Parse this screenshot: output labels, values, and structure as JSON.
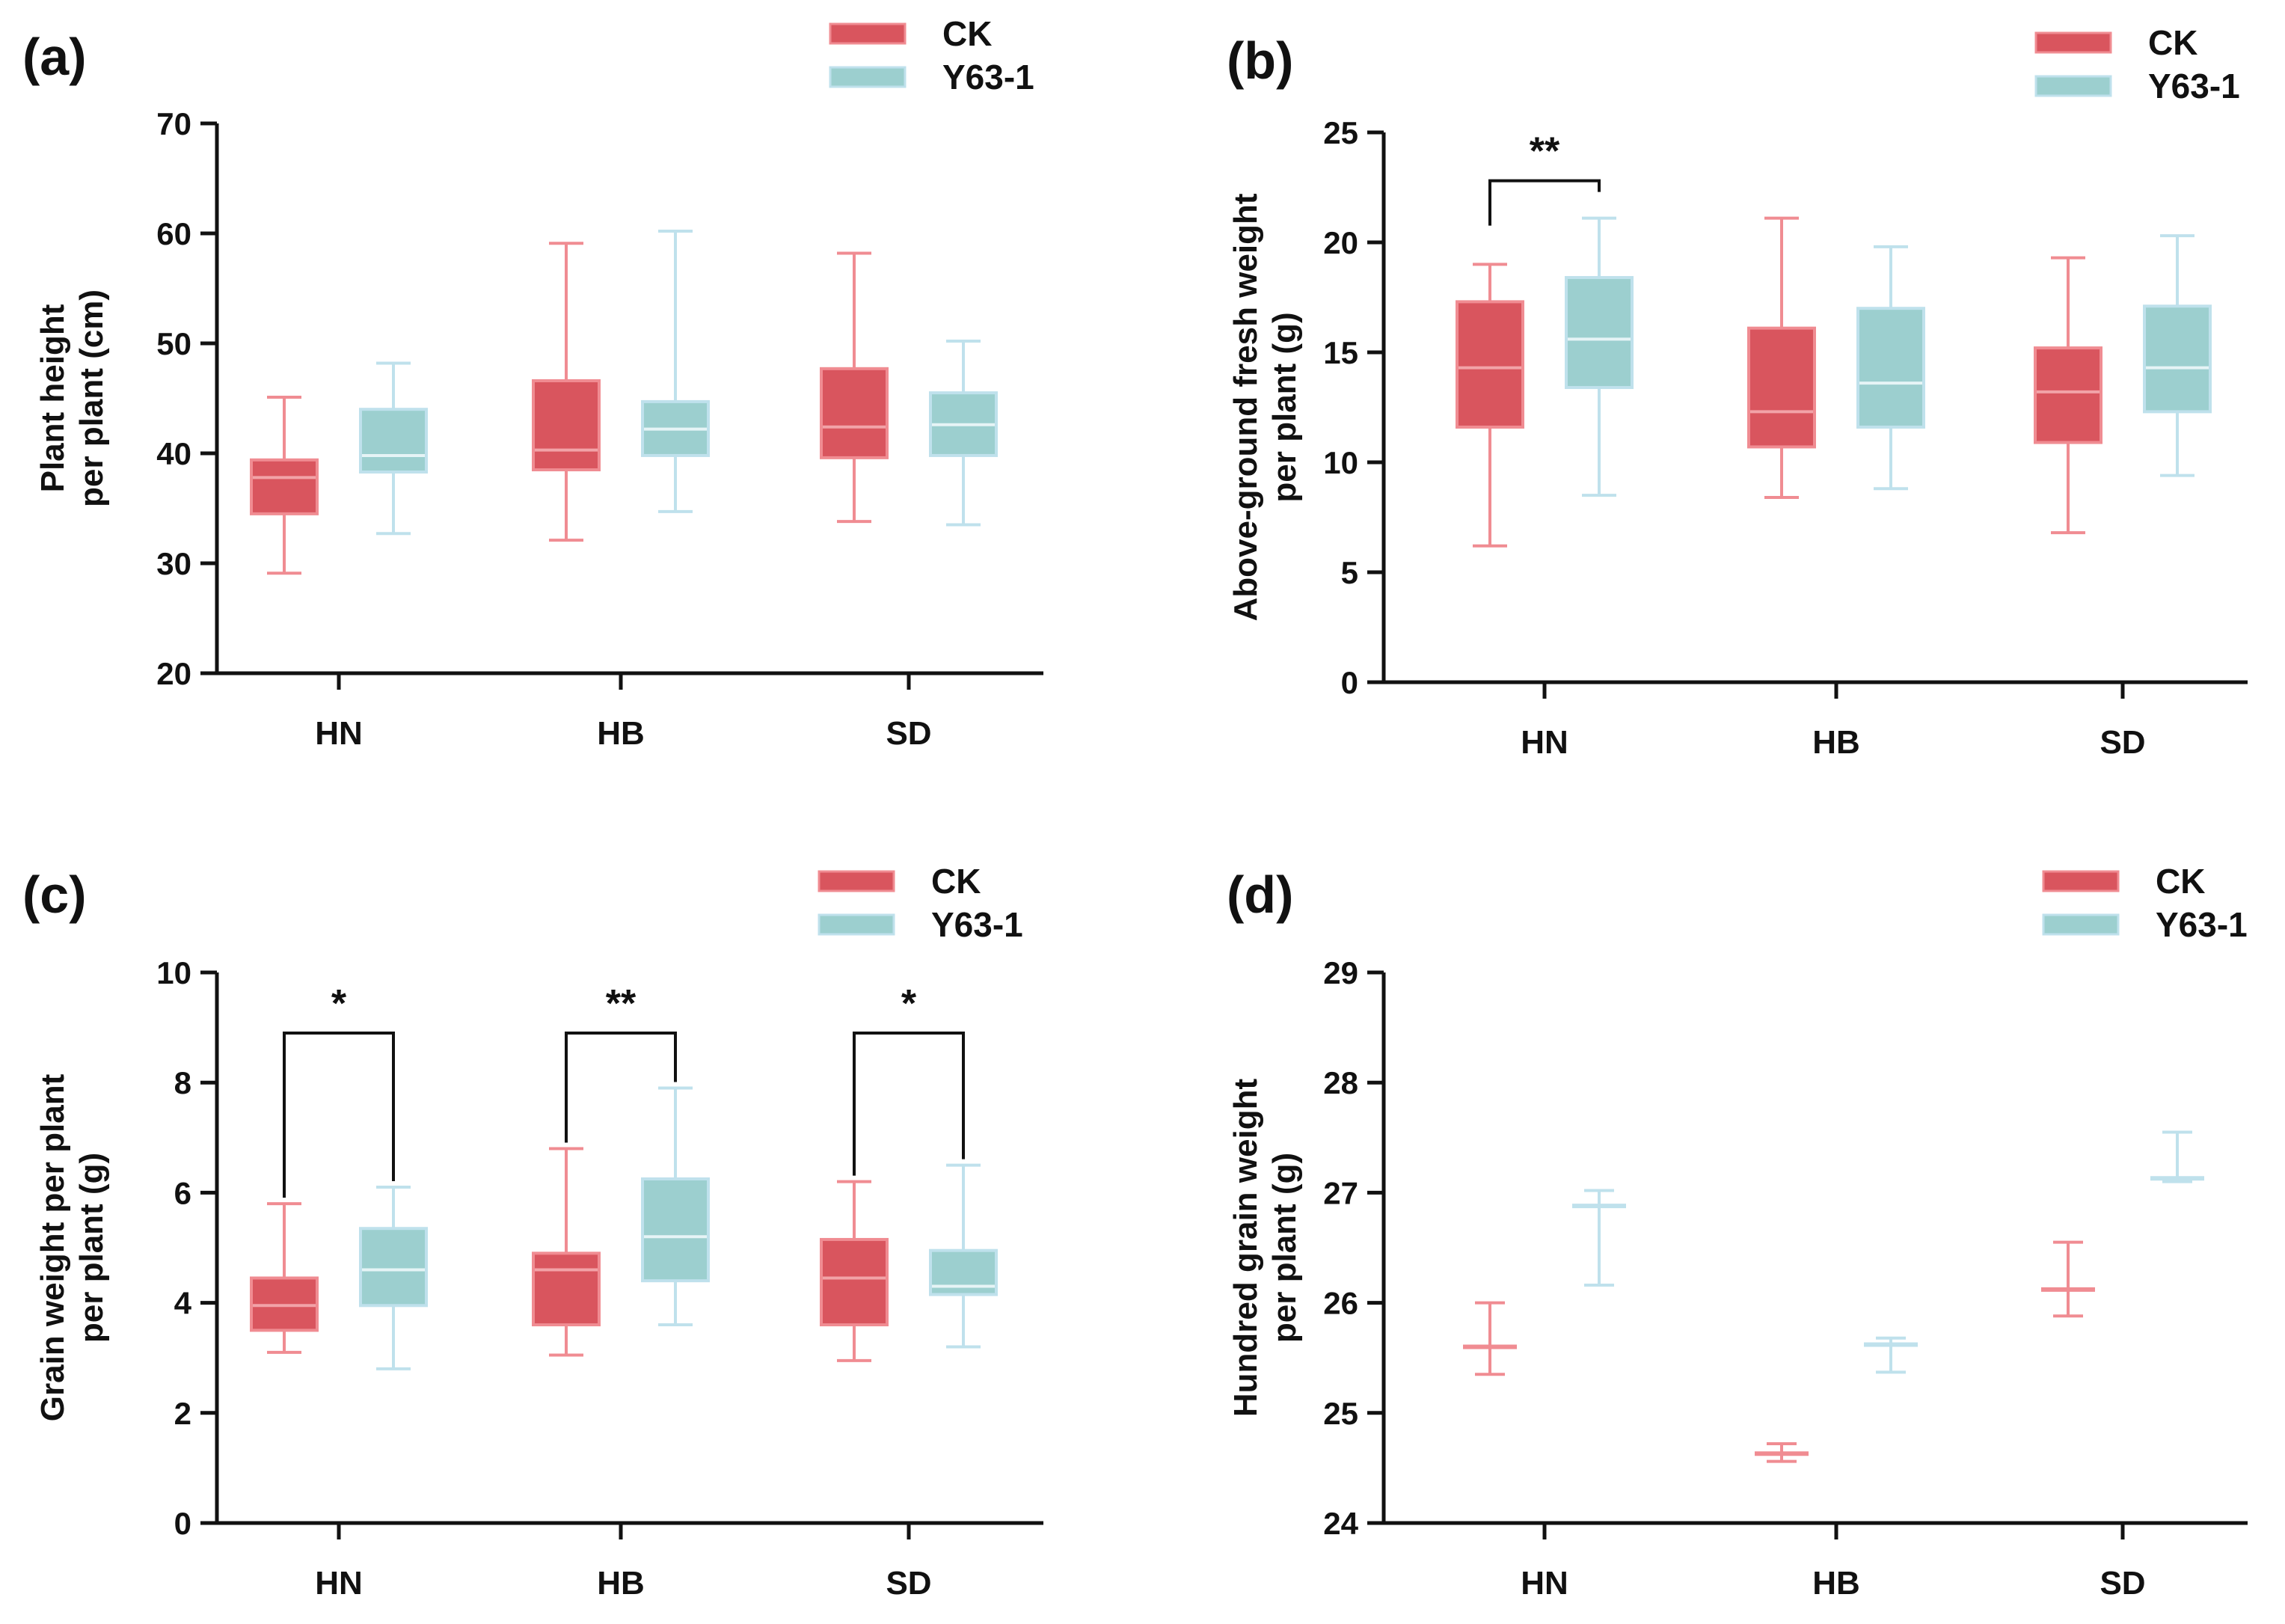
{
  "colors": {
    "ck_fill": "#d9555e",
    "ck_line": "#f08c92",
    "ck_median": "#f2a3a8",
    "y63_fill": "#9ccfcf",
    "y63_line": "#bfe1ec",
    "y63_median": "#e6f4f6",
    "axis": "#111111"
  },
  "chart_data": [
    {
      "panel": "(a)",
      "type": "box",
      "categories": [
        "HN",
        "HB",
        "SD"
      ],
      "ylabel": [
        "Plant height",
        "per plant (cm)"
      ],
      "ylim": [
        20,
        70
      ],
      "yticks": [
        "20",
        "30",
        "40",
        "50",
        "60",
        "70"
      ],
      "legend": [
        "CK",
        "Y63-1"
      ],
      "series": [
        {
          "name": "CK",
          "boxes": [
            {
              "min": 29.1,
              "q1": 34.5,
              "median": 37.8,
              "q3": 39.4,
              "max": 45.1
            },
            {
              "min": 32.1,
              "q1": 38.5,
              "median": 40.3,
              "q3": 46.6,
              "max": 59.1
            },
            {
              "min": 33.8,
              "q1": 39.6,
              "median": 42.4,
              "q3": 47.7,
              "max": 58.2
            }
          ]
        },
        {
          "name": "Y63-1",
          "boxes": [
            {
              "min": 32.7,
              "q1": 38.3,
              "median": 39.8,
              "q3": 44.0,
              "max": 48.2
            },
            {
              "min": 34.7,
              "q1": 39.8,
              "median": 42.2,
              "q3": 44.7,
              "max": 60.2
            },
            {
              "min": 33.5,
              "q1": 39.8,
              "median": 42.6,
              "q3": 45.5,
              "max": 50.2
            }
          ]
        }
      ],
      "significance": []
    },
    {
      "panel": "(b)",
      "type": "box",
      "categories": [
        "HN",
        "HB",
        "SD"
      ],
      "ylabel": [
        "Above-ground fresh weight",
        "per plant (g)"
      ],
      "ylim": [
        0,
        25
      ],
      "yticks": [
        "0",
        "5",
        "10",
        "15",
        "20",
        "25"
      ],
      "legend": [
        "CK",
        "Y63-1"
      ],
      "series": [
        {
          "name": "CK",
          "boxes": [
            {
              "min": 6.2,
              "q1": 11.6,
              "median": 14.3,
              "q3": 17.3,
              "max": 19.0
            },
            {
              "min": 8.4,
              "q1": 10.7,
              "median": 12.3,
              "q3": 16.1,
              "max": 21.1
            },
            {
              "min": 6.8,
              "q1": 10.9,
              "median": 13.2,
              "q3": 15.2,
              "max": 19.3
            }
          ]
        },
        {
          "name": "Y63-1",
          "boxes": [
            {
              "min": 8.5,
              "q1": 13.4,
              "median": 15.6,
              "q3": 18.4,
              "max": 21.1
            },
            {
              "min": 8.8,
              "q1": 11.6,
              "median": 13.6,
              "q3": 17.0,
              "max": 19.8
            },
            {
              "min": 9.4,
              "q1": 12.3,
              "median": 14.3,
              "q3": 17.1,
              "max": 20.3
            }
          ]
        }
      ],
      "significance": [
        {
          "category": "HN",
          "label": "**",
          "y": 22.8
        }
      ]
    },
    {
      "panel": "(c)",
      "type": "box",
      "categories": [
        "HN",
        "HB",
        "SD"
      ],
      "ylabel": [
        "Grain weight per plant",
        "per plant (g)"
      ],
      "ylim": [
        0,
        10
      ],
      "yticks": [
        "0",
        "2",
        "4",
        "6",
        "8",
        "10"
      ],
      "legend": [
        "CK",
        "Y63-1"
      ],
      "series": [
        {
          "name": "CK",
          "boxes": [
            {
              "min": 3.1,
              "q1": 3.5,
              "median": 3.95,
              "q3": 4.45,
              "max": 5.8
            },
            {
              "min": 3.05,
              "q1": 3.6,
              "median": 4.6,
              "q3": 4.9,
              "max": 6.8
            },
            {
              "min": 2.95,
              "q1": 3.6,
              "median": 4.45,
              "q3": 5.15,
              "max": 6.2
            }
          ]
        },
        {
          "name": "Y63-1",
          "boxes": [
            {
              "min": 2.8,
              "q1": 3.95,
              "median": 4.6,
              "q3": 5.35,
              "max": 6.1
            },
            {
              "min": 3.6,
              "q1": 4.4,
              "median": 5.2,
              "q3": 6.25,
              "max": 7.9
            },
            {
              "min": 3.2,
              "q1": 4.15,
              "median": 4.3,
              "q3": 4.95,
              "max": 6.5
            }
          ]
        }
      ],
      "significance": [
        {
          "category": "HN",
          "label": "*",
          "y": 8.9
        },
        {
          "category": "HB",
          "label": "**",
          "y": 8.9
        },
        {
          "category": "SD",
          "label": "*",
          "y": 8.9
        }
      ]
    },
    {
      "panel": "(d)",
      "type": "errorbar",
      "categories": [
        "HN",
        "HB",
        "SD"
      ],
      "ylabel": [
        "Hundred grain weight",
        "per plant (g)"
      ],
      "ylim": [
        24,
        29
      ],
      "yticks": [
        "24",
        "25",
        "26",
        "27",
        "28",
        "29"
      ],
      "legend": [
        "CK",
        "Y63-1"
      ],
      "series": [
        {
          "name": "CK",
          "points": [
            {
              "mean": 25.6,
              "low": 25.35,
              "high": 26.0
            },
            {
              "mean": 24.63,
              "low": 24.56,
              "high": 24.72
            },
            {
              "mean": 26.12,
              "low": 25.88,
              "high": 26.55
            }
          ]
        },
        {
          "name": "Y63-1",
          "points": [
            {
              "mean": 26.88,
              "low": 26.16,
              "high": 27.02
            },
            {
              "mean": 25.62,
              "low": 25.37,
              "high": 25.68
            },
            {
              "mean": 27.13,
              "low": 27.1,
              "high": 27.55
            }
          ]
        }
      ],
      "significance": []
    }
  ]
}
